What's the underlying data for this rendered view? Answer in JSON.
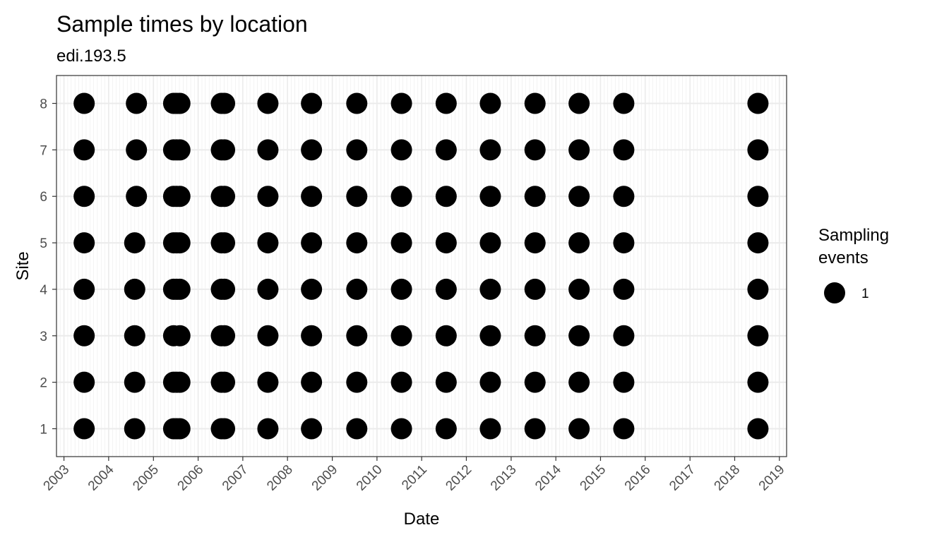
{
  "chart_data": {
    "type": "scatter",
    "title": "Sample times by location",
    "subtitle": "edi.193.5",
    "xlabel": "Date",
    "ylabel": "Site",
    "x_ticks": [
      "2003",
      "2004",
      "2005",
      "2006",
      "2007",
      "2008",
      "2009",
      "2010",
      "2011",
      "2012",
      "2013",
      "2014",
      "2015",
      "2016",
      "2017",
      "2018",
      "2019"
    ],
    "y_ticks": [
      "1",
      "2",
      "3",
      "4",
      "5",
      "6",
      "7",
      "8"
    ],
    "xlim": [
      "2002-11-01",
      "2019-03-01"
    ],
    "ylim": [
      0.4,
      8.6
    ],
    "grid": true,
    "legend": {
      "title_lines": [
        "Sampling",
        "events"
      ],
      "label": "1",
      "position": "right"
    },
    "colors": {
      "point": "#000000",
      "panel_border": "#333333",
      "grid": "#ebebeb"
    },
    "series": [
      {
        "x": "2003-06-15",
        "sites": [
          1,
          2,
          3,
          4,
          5,
          6,
          7,
          8
        ]
      },
      {
        "x": "2004-08-01",
        "sites": [
          1,
          2,
          3,
          4,
          5
        ]
      },
      {
        "x": "2004-08-15",
        "sites": [
          6,
          7,
          8
        ]
      },
      {
        "x": "2005-06-15",
        "sites": [
          1,
          2,
          3,
          4,
          5,
          6,
          7,
          8
        ]
      },
      {
        "x": "2005-07-10",
        "sites": [
          1,
          2,
          4,
          5,
          6,
          7,
          8
        ]
      },
      {
        "x": "2005-08-05",
        "sites": [
          1,
          2,
          3,
          4,
          5,
          6,
          7,
          8
        ]
      },
      {
        "x": "2006-07-10",
        "sites": [
          1,
          2,
          3,
          4,
          5,
          6,
          7,
          8
        ]
      },
      {
        "x": "2006-08-05",
        "sites": [
          1,
          2,
          3,
          4,
          5,
          6,
          7,
          8
        ]
      },
      {
        "x": "2007-07-25",
        "sites": [
          1,
          2,
          3,
          4,
          5,
          6,
          7,
          8
        ]
      },
      {
        "x": "2008-07-15",
        "sites": [
          1,
          2,
          3,
          4,
          5,
          6,
          7,
          8
        ]
      },
      {
        "x": "2009-07-20",
        "sites": [
          1,
          2,
          3,
          4,
          5,
          6,
          7,
          8
        ]
      },
      {
        "x": "2010-07-20",
        "sites": [
          1,
          2,
          3,
          4,
          5,
          6,
          7,
          8
        ]
      },
      {
        "x": "2011-07-20",
        "sites": [
          1,
          2,
          3,
          4,
          5,
          6,
          7,
          8
        ]
      },
      {
        "x": "2012-07-15",
        "sites": [
          1,
          2,
          3,
          4,
          5,
          6,
          7,
          8
        ]
      },
      {
        "x": "2013-07-15",
        "sites": [
          1,
          2,
          3,
          4,
          5,
          6,
          7,
          8
        ]
      },
      {
        "x": "2014-07-10",
        "sites": [
          1,
          2,
          3,
          4,
          5,
          6,
          7,
          8
        ]
      },
      {
        "x": "2015-07-10",
        "sites": [
          1,
          2,
          3,
          4,
          5,
          6,
          7,
          8
        ]
      },
      {
        "x": "2018-07-10",
        "sites": [
          1,
          2,
          3,
          4,
          5,
          6,
          7,
          8
        ]
      }
    ]
  }
}
